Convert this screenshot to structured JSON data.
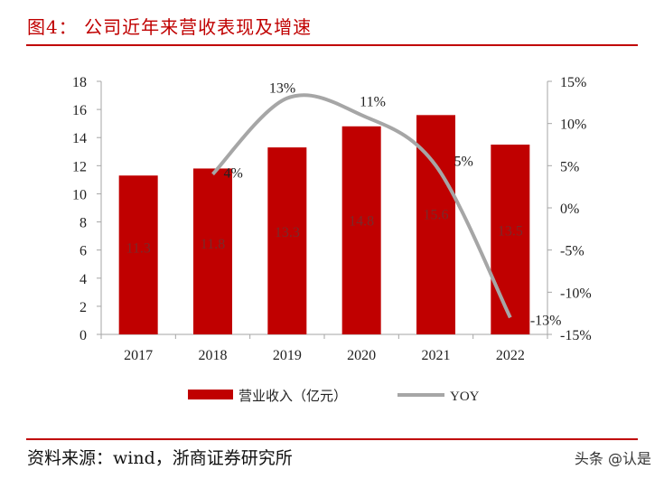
{
  "title": "图4：  公司近年来营收表现及增速",
  "source": "资料来源：wind，浙商证券研究所",
  "watermark": "头条 @认是",
  "colors": {
    "bar": "#c00000",
    "line": "#a6a6a6",
    "title": "#c00000"
  },
  "chart_data": {
    "type": "bar+line",
    "categories": [
      "2017",
      "2018",
      "2019",
      "2020",
      "2021",
      "2022"
    ],
    "series": [
      {
        "name": "营业收入（亿元）",
        "type": "bar",
        "axis": "left",
        "values": [
          11.3,
          11.8,
          13.3,
          14.8,
          15.6,
          13.5
        ],
        "labels": [
          "11.3",
          "11.8",
          "13.3",
          "14.8",
          "15.6",
          "13.5"
        ]
      },
      {
        "name": "YOY",
        "type": "line",
        "axis": "right",
        "values": [
          null,
          4,
          13,
          11,
          5,
          -13
        ],
        "labels": [
          "",
          "4%",
          "13%",
          "11%",
          "5%",
          "-13%"
        ]
      }
    ],
    "y_left": {
      "min": 0,
      "max": 18,
      "ticks": [
        "0",
        "2",
        "4",
        "6",
        "8",
        "10",
        "12",
        "14",
        "16",
        "18"
      ]
    },
    "y_right": {
      "min": -15,
      "max": 15,
      "ticks": [
        "-15%",
        "-10%",
        "-5%",
        "0%",
        "5%",
        "10%",
        "15%"
      ]
    },
    "grid": false,
    "legend": "bottom"
  }
}
